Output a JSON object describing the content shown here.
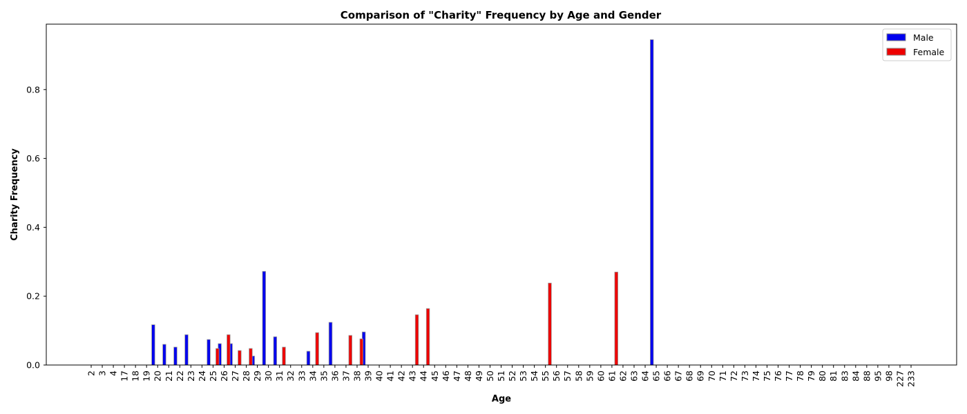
{
  "chart_data": {
    "type": "bar",
    "title": "Comparison of \"Charity\" Frequency by Age and Gender",
    "xlabel": "Age",
    "ylabel": "Charity Frequency",
    "ylim": [
      0,
      0.99
    ],
    "yticks": [
      0.0,
      0.2,
      0.4,
      0.6,
      0.8
    ],
    "ytick_labels": [
      "0.0",
      "0.2",
      "0.4",
      "0.6",
      "0.8"
    ],
    "legend_position": "top-right",
    "grid": false,
    "categories": [
      "2",
      "3",
      "4",
      "17",
      "18",
      "19",
      "20",
      "21",
      "22",
      "23",
      "24",
      "25",
      "26",
      "27",
      "28",
      "29",
      "30",
      "31",
      "32",
      "33",
      "34",
      "35",
      "36",
      "37",
      "38",
      "39",
      "40",
      "41",
      "42",
      "43",
      "44",
      "45",
      "46",
      "47",
      "48",
      "49",
      "50",
      "51",
      "52",
      "53",
      "54",
      "55",
      "56",
      "57",
      "58",
      "59",
      "60",
      "61",
      "62",
      "63",
      "64",
      "65",
      "66",
      "67",
      "68",
      "69",
      "70",
      "71",
      "72",
      "73",
      "74",
      "75",
      "76",
      "77",
      "78",
      "79",
      "80",
      "81",
      "83",
      "84",
      "88",
      "95",
      "98",
      "227",
      "233"
    ],
    "series": [
      {
        "name": "Male",
        "color": "#0000ee",
        "values": [
          0,
          0,
          0,
          0,
          0,
          0,
          0.117,
          0.06,
          0.052,
          0.088,
          0,
          0.074,
          0.062,
          0.062,
          0,
          0.026,
          0.272,
          0.082,
          0,
          0,
          0.04,
          0,
          0.124,
          0,
          0,
          0.096,
          0,
          0,
          0,
          0,
          0,
          0,
          0,
          0,
          0,
          0,
          0,
          0,
          0,
          0,
          0,
          0,
          0,
          0,
          0,
          0,
          0,
          0,
          0,
          0,
          0,
          0.945,
          0,
          0,
          0,
          0,
          0,
          0,
          0,
          0,
          0,
          0,
          0,
          0,
          0,
          0,
          0,
          0,
          0,
          0,
          0,
          0,
          0,
          0,
          0
        ]
      },
      {
        "name": "Female",
        "color": "#ee0000",
        "values": [
          0,
          0,
          0,
          0,
          0,
          0,
          0,
          0,
          0,
          0,
          0,
          0.048,
          0.088,
          0.042,
          0.048,
          0,
          0,
          0.052,
          0,
          0,
          0.094,
          0,
          0,
          0.086,
          0.076,
          0,
          0,
          0,
          0,
          0.146,
          0.164,
          0,
          0,
          0,
          0,
          0,
          0,
          0,
          0,
          0,
          0,
          0.238,
          0,
          0,
          0,
          0,
          0,
          0.27,
          0,
          0,
          0,
          0,
          0,
          0,
          0,
          0,
          0,
          0,
          0,
          0,
          0,
          0,
          0,
          0,
          0,
          0,
          0,
          0,
          0,
          0,
          0,
          0,
          0,
          0,
          0
        ]
      }
    ]
  }
}
